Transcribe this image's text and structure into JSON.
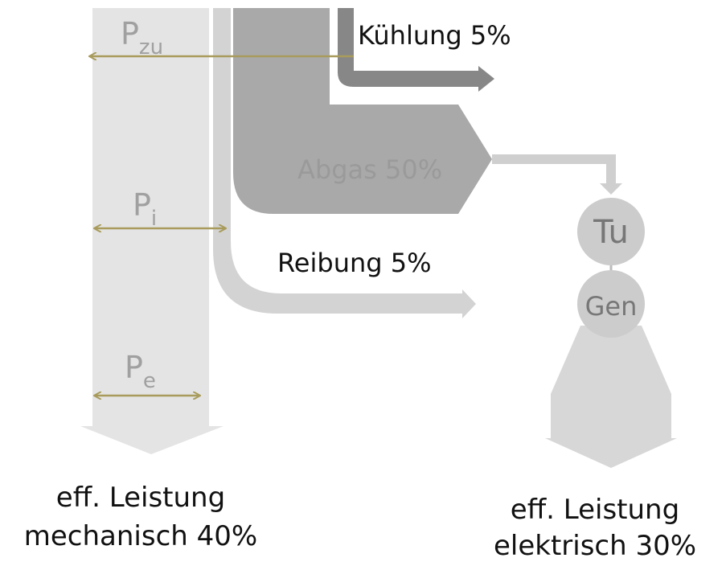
{
  "labels": {
    "p_zu": {
      "base": "P",
      "sub": "zu"
    },
    "p_i": {
      "base": "P",
      "sub": "i"
    },
    "p_e": {
      "base": "P",
      "sub": "e"
    }
  },
  "flows": {
    "kuehlung": "Kühlung 5%",
    "abgas": "Abgas 50%",
    "reibung": "Reibung 5%"
  },
  "machines": {
    "turbine": "Tu",
    "generator": "Gen"
  },
  "outputs": {
    "mechanical": [
      "eff. Leistung",
      "mechanisch 40%"
    ],
    "electrical": [
      "eff. Leistung",
      "elektrisch 30%"
    ]
  }
}
